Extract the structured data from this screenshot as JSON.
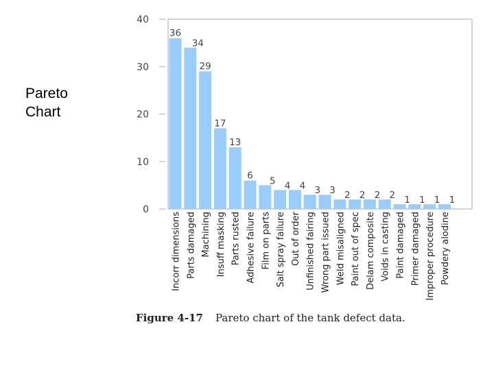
{
  "slide": {
    "title": "Pareto\nChart"
  },
  "figure": {
    "number": "Figure 4-17",
    "caption": "Pareto chart of the tank defect data."
  },
  "colors": {
    "bar": "#99ccff",
    "frame": "#aaaaaa",
    "text": "#444444"
  },
  "chart_data": {
    "type": "bar",
    "categories": [
      "Incorr dimensions",
      "Parts damaged",
      "Machining",
      "Insuff masking",
      "Parts rusted",
      "Adhesive failure",
      "Film on parts",
      "Salt spray failure",
      "Out of order",
      "Unfinished fairing",
      "Wrong part issued",
      "Weld misaligned",
      "Paint out of spec",
      "Delam composite",
      "Voids in casting",
      "Paint damaged",
      "Primer damaged",
      "Improper procedure",
      "Powdery alodine"
    ],
    "values": [
      36,
      34,
      29,
      17,
      13,
      6,
      5,
      4,
      4,
      3,
      3,
      2,
      2,
      2,
      2,
      1,
      1,
      1,
      1
    ],
    "data_labels": [
      "36",
      "34",
      "29",
      "17",
      "13",
      "6",
      "5",
      "4",
      "4",
      "3",
      "3",
      "2",
      "2",
      "2",
      "2",
      "1",
      "1",
      "1",
      "1"
    ],
    "ylim": [
      0,
      40
    ],
    "yticks": [
      0,
      10,
      20,
      30,
      40
    ],
    "ytick_labels": [
      "0",
      "10",
      "20",
      "30",
      "40"
    ],
    "grid": false,
    "legend": "none"
  }
}
